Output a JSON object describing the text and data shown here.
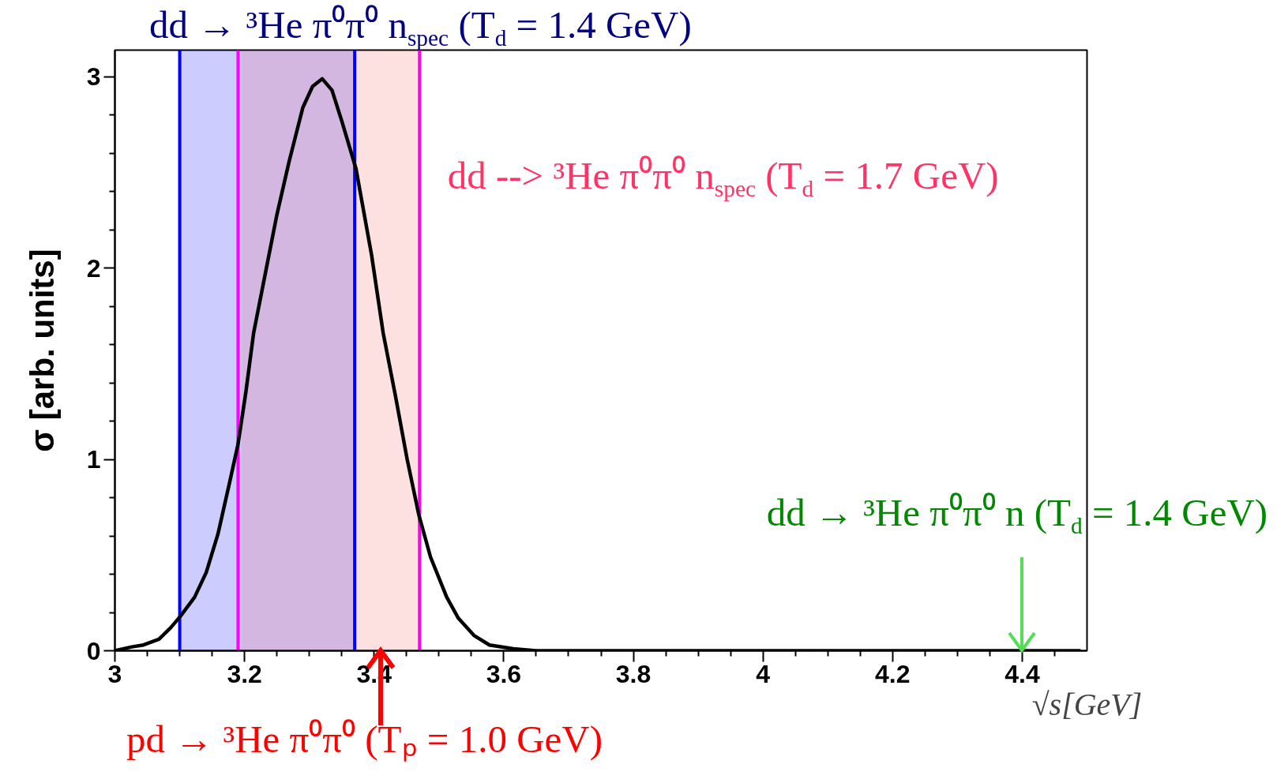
{
  "chart_data": {
    "type": "line",
    "xlabel": "√s[GeV]",
    "ylabel": "σ [arb. units]",
    "color": "#000000",
    "x": [
      3.0,
      3.026,
      3.044,
      3.068,
      3.086,
      3.101,
      3.123,
      3.141,
      3.159,
      3.177,
      3.19,
      3.202,
      3.214,
      3.232,
      3.25,
      3.269,
      3.29,
      3.305,
      3.32,
      3.335,
      3.35,
      3.372,
      3.396,
      3.414,
      3.433,
      3.451,
      3.469,
      3.487,
      3.512,
      3.53,
      3.554,
      3.578,
      3.615,
      3.65,
      3.7,
      3.8,
      3.9,
      4.0,
      4.1,
      4.2,
      4.3,
      4.4,
      4.49
    ],
    "values": [
      0.0,
      0.02,
      0.03,
      0.06,
      0.12,
      0.18,
      0.28,
      0.41,
      0.61,
      0.88,
      1.08,
      1.35,
      1.66,
      1.97,
      2.28,
      2.56,
      2.84,
      2.95,
      2.99,
      2.93,
      2.77,
      2.52,
      2.07,
      1.66,
      1.33,
      1.0,
      0.71,
      0.49,
      0.28,
      0.17,
      0.08,
      0.03,
      0.01,
      0.0,
      0.0,
      0.0,
      0.0,
      0.0,
      0.0,
      0.0,
      0.0,
      0.0,
      0.0
    ],
    "xlim": [
      3,
      4.5
    ],
    "ylim": [
      0,
      3.14
    ],
    "xticks": [
      3,
      {
        "value": 3.05,
        "label": null
      },
      {
        "value": 3.1,
        "label": null
      },
      {
        "value": 3.15,
        "label": null
      },
      3.2,
      {
        "value": 3.25,
        "label": null
      },
      {
        "value": 3.3,
        "label": null
      },
      {
        "value": 3.35,
        "label": null
      },
      3.4,
      {
        "value": 3.45,
        "label": null
      },
      {
        "value": 3.5,
        "label": null
      },
      {
        "value": 3.55,
        "label": null
      },
      3.6,
      {
        "value": 3.65,
        "label": null
      },
      {
        "value": 3.7,
        "label": null
      },
      {
        "value": 3.75,
        "label": null
      },
      3.8,
      {
        "value": 3.85,
        "label": null
      },
      {
        "value": 3.9,
        "label": null
      },
      {
        "value": 3.95,
        "label": null
      },
      4,
      {
        "value": 4.05,
        "label": null
      },
      {
        "value": 4.1,
        "label": null
      },
      {
        "value": 4.15,
        "label": null
      },
      4.2,
      {
        "value": 4.25,
        "label": null
      },
      {
        "value": 4.3,
        "label": null
      },
      {
        "value": 4.35,
        "label": null
      },
      4.4,
      {
        "value": 4.45,
        "label": null
      }
    ],
    "yticks": [
      0,
      {
        "value": 0.2,
        "label": null
      },
      {
        "value": 0.4,
        "label": null
      },
      {
        "value": 0.6,
        "label": null
      },
      {
        "value": 0.8,
        "label": null
      },
      1,
      {
        "value": 1.2,
        "label": null
      },
      {
        "value": 1.4,
        "label": null
      },
      {
        "value": 1.6,
        "label": null
      },
      {
        "value": 1.8,
        "label": null
      },
      2,
      {
        "value": 2.2,
        "label": null
      },
      {
        "value": 2.4,
        "label": null
      },
      {
        "value": 2.6,
        "label": null
      },
      {
        "value": 2.8,
        "label": null
      },
      3
    ],
    "bands": [
      {
        "axis": "x",
        "from": 3.1,
        "to": 3.37,
        "color": "#ccccff",
        "label": "dd → ³He π⁰π⁰ n$_{spec}$ (T$_{d}$ = 1.4 GeV)"
      },
      {
        "axis": "x",
        "from": 3.195,
        "to": 3.47,
        "color": "#fde0e0",
        "label": "dd --> ³He π⁰π⁰ n$_{spec}$ (T$_{d}$ = 1.7 GeV)"
      }
    ],
    "ref_lines": [
      {
        "axis": "x",
        "value": 3.1,
        "color": "#0000ff"
      },
      {
        "axis": "x",
        "value": 3.37,
        "color": "#0000ff"
      },
      {
        "axis": "x",
        "value": 3.19,
        "color": "#ff00ff"
      },
      {
        "axis": "x",
        "value": 3.47,
        "color": "#ff00ff"
      }
    ],
    "annotations": [
      {
        "text": "pd → ³He π⁰π⁰ (Tₚ = 1.0 GeV)",
        "x": 3.41,
        "y": 0
      },
      {
        "text": "dd → ³He π⁰π⁰ n (T$_{d}$ = 1.4 GeV)",
        "x": 4.4,
        "y": 0
      }
    ]
  }
}
